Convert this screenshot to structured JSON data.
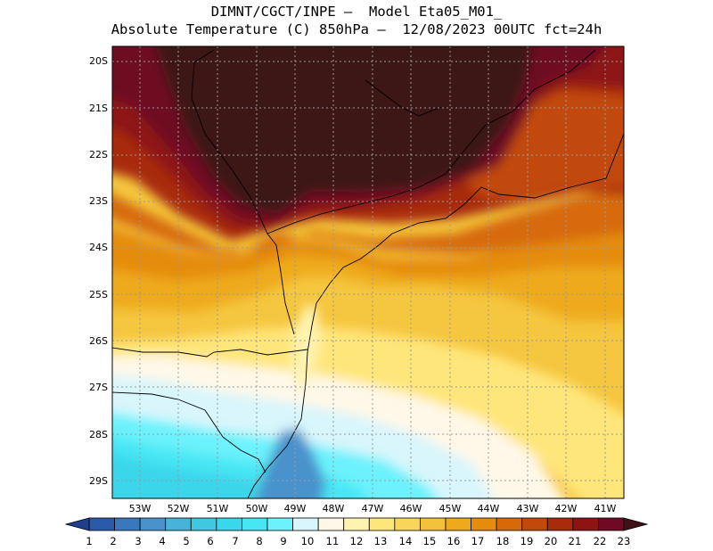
{
  "header": {
    "line1": "DIMNT/CGCT/INPE —  Model Eta05_M01_",
    "line2": "Absolute Temperature (C) 850hPa —  12/08/2023 00UTC fct=24h"
  },
  "map": {
    "lat_labels": [
      "20S",
      "21S",
      "22S",
      "23S",
      "24S",
      "25S",
      "26S",
      "27S",
      "28S",
      "29S"
    ],
    "lon_labels": [
      "53W",
      "52W",
      "51W",
      "50W",
      "49W",
      "48W",
      "47W",
      "46W",
      "45W",
      "44W",
      "43W",
      "42W",
      "41W"
    ]
  },
  "colorbar": {
    "labels": [
      "1",
      "2",
      "3",
      "4",
      "5",
      "6",
      "7",
      "8",
      "9",
      "10",
      "11",
      "12",
      "13",
      "14",
      "15",
      "16",
      "17",
      "18",
      "19",
      "20",
      "21",
      "22",
      "23"
    ],
    "colors": [
      "#1f3f8f",
      "#2a5aa8",
      "#3a78bd",
      "#4a92cc",
      "#48b3d9",
      "#3fc8e0",
      "#3ad6ea",
      "#46e6f4",
      "#6cf2fc",
      "#d8f6fc",
      "#fff8e8",
      "#fff3b0",
      "#ffe67a",
      "#f9d65a",
      "#f3c23c",
      "#eeaa1a",
      "#e58c0c",
      "#d66a08",
      "#c24a08",
      "#a82c0c",
      "#8e1414",
      "#6e0a24",
      "#3e1216"
    ]
  }
}
